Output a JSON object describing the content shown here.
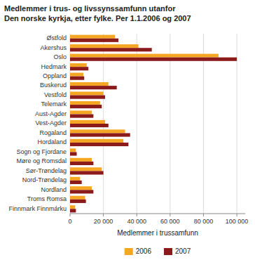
{
  "chart_data": {
    "type": "bar",
    "orientation": "horizontal",
    "title": "Medlemmer i trus- og livssynssamfunn utanfor\nDen norske kyrkja, etter fylke. Per 1.1.2006 og 2007",
    "x_label": "Medlemmer i trussamfunn",
    "categories": [
      "Østfold",
      "Akershus",
      "Oslo",
      "Hedmark",
      "Oppland",
      "Buskerud",
      "Vestfold",
      "Telemark",
      "Aust-Agder",
      "Vest-Agder",
      "Rogaland",
      "Hordaland",
      "Sogn og Fjordane",
      "Møre og Romsdal",
      "Sør-Trøndelag",
      "Nord-Trøndelag",
      "Nordland",
      "Troms Romsa",
      "Finnmark Finnmárku"
    ],
    "series": [
      {
        "name": "2006",
        "color": "#F5A623",
        "values": [
          27000,
          41000,
          89000,
          10000,
          8000,
          23000,
          20000,
          18000,
          13000,
          21000,
          33000,
          32000,
          3500,
          13000,
          19000,
          6000,
          13000,
          9000,
          3000
        ]
      },
      {
        "name": "2007",
        "color": "#8B1A1A",
        "values": [
          29000,
          49000,
          100000,
          11000,
          8500,
          28000,
          21000,
          19000,
          14000,
          23000,
          36000,
          35000,
          4000,
          14000,
          20000,
          7000,
          14000,
          9500,
          3500
        ]
      }
    ],
    "xlim": [
      0,
      105000
    ],
    "xticks": [
      0,
      {
        "value": 20000,
        "label": "20 000"
      },
      {
        "value": 40000,
        "label": "40 000"
      },
      {
        "value": 60000,
        "label": "60 000"
      },
      {
        "value": 80000,
        "label": "80 000"
      },
      {
        "value": 100000,
        "label": "100 000"
      }
    ],
    "grid": true,
    "legend": "bottom"
  }
}
